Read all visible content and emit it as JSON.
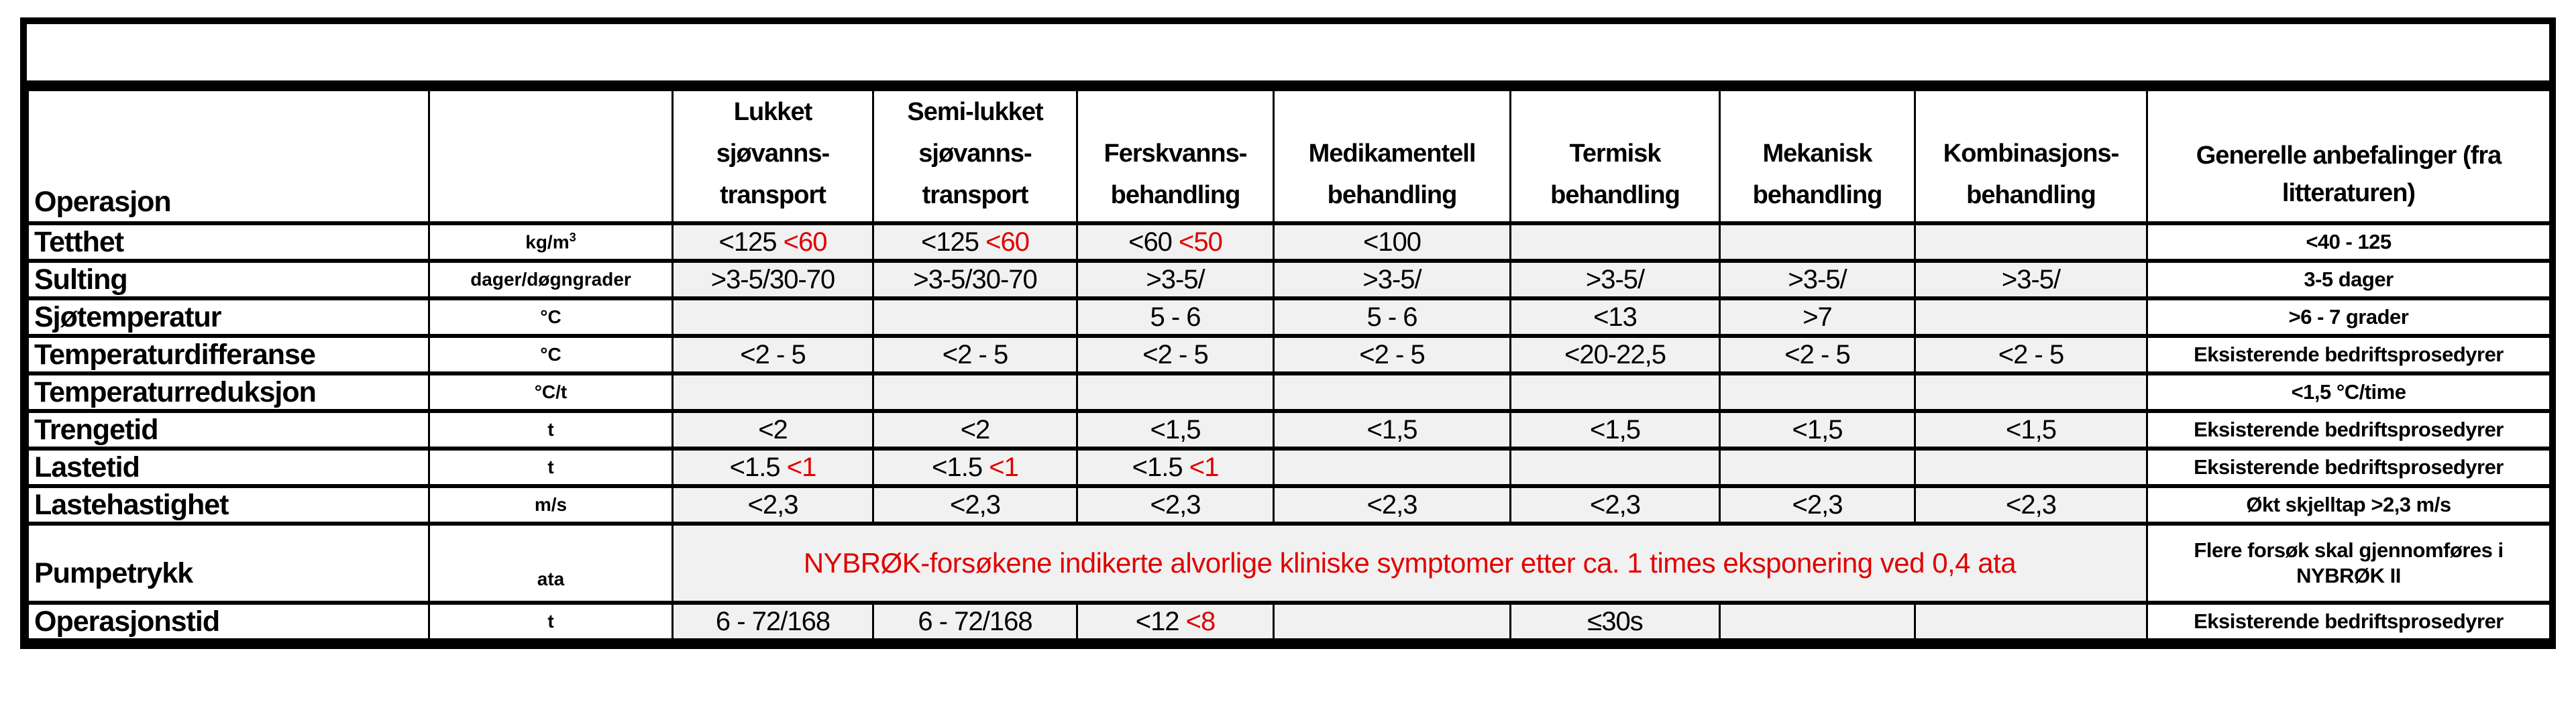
{
  "title_box": "",
  "colors": {
    "red": "#e00000",
    "cell_background": "#f1f1f1",
    "border": "#000000",
    "page_background": "#ffffff"
  },
  "header": {
    "operation_label": "Operasjon",
    "unit_label": "",
    "treatments": [
      "Lukket\nsjøvanns-\ntransport",
      "Semi-lukket\nsjøvanns-\ntransport",
      "Ferskvanns-\nbehandling",
      "Medikamentell\nbehandling",
      "Termisk\nbehandling",
      "Mekanisk\nbehandling",
      "Kombinasjons-\nbehandling"
    ],
    "general_label": "Generelle anbefalinger (fra litteraturen)"
  },
  "rows": [
    {
      "label": "Tetthet",
      "unit": "kg/m",
      "unit_sup": "3",
      "cells": [
        [
          {
            "text": "<125 "
          },
          {
            "text": "<60",
            "red": true
          }
        ],
        [
          {
            "text": "<125 "
          },
          {
            "text": "<60",
            "red": true
          }
        ],
        [
          {
            "text": "<60 "
          },
          {
            "text": "<50",
            "red": true
          }
        ],
        [
          {
            "text": "<100"
          }
        ],
        [],
        [],
        []
      ],
      "general": "<40 - 125"
    },
    {
      "label": "Sulting",
      "unit": "dager/døgngrader",
      "cells": [
        [
          {
            "text": ">3-5/30-70"
          }
        ],
        [
          {
            "text": ">3-5/30-70"
          }
        ],
        [
          {
            "text": ">3-5/"
          }
        ],
        [
          {
            "text": ">3-5/"
          }
        ],
        [
          {
            "text": ">3-5/"
          }
        ],
        [
          {
            "text": ">3-5/"
          }
        ],
        [
          {
            "text": ">3-5/"
          }
        ]
      ],
      "general": "3-5 dager"
    },
    {
      "label": "Sjøtemperatur",
      "unit": "°C",
      "cells": [
        [],
        [],
        [
          {
            "text": "5 - 6"
          }
        ],
        [
          {
            "text": "5 - 6"
          }
        ],
        [
          {
            "text": "<13"
          }
        ],
        [
          {
            "text": ">7"
          }
        ],
        []
      ],
      "general": ">6 - 7 grader"
    },
    {
      "label": "Temperaturdifferanse",
      "unit": "°C",
      "cells": [
        [
          {
            "text": "<2 - 5"
          }
        ],
        [
          {
            "text": "<2 - 5"
          }
        ],
        [
          {
            "text": "<2 - 5"
          }
        ],
        [
          {
            "text": "<2 - 5"
          }
        ],
        [
          {
            "text": "<20-22,5"
          }
        ],
        [
          {
            "text": "<2 - 5"
          }
        ],
        [
          {
            "text": "<2 - 5"
          }
        ]
      ],
      "general": "Eksisterende bedriftsprosedyrer"
    },
    {
      "label": "Temperaturreduksjon",
      "unit": "°C/t",
      "cells": [
        [],
        [],
        [],
        [],
        [],
        [],
        []
      ],
      "general": "<1,5 °C/time"
    },
    {
      "label": "Trengetid",
      "unit": "t",
      "cells": [
        [
          {
            "text": "<2"
          }
        ],
        [
          {
            "text": "<2"
          }
        ],
        [
          {
            "text": "<1,5"
          }
        ],
        [
          {
            "text": "<1,5"
          }
        ],
        [
          {
            "text": "<1,5"
          }
        ],
        [
          {
            "text": "<1,5"
          }
        ],
        [
          {
            "text": "<1,5"
          }
        ]
      ],
      "general": "Eksisterende bedriftsprosedyrer"
    },
    {
      "label": "Lastetid",
      "unit": "t",
      "cells": [
        [
          {
            "text": "<1.5 "
          },
          {
            "text": "<1",
            "red": true
          }
        ],
        [
          {
            "text": "<1.5 "
          },
          {
            "text": "<1",
            "red": true
          }
        ],
        [
          {
            "text": "<1.5 "
          },
          {
            "text": "<1",
            "red": true
          }
        ],
        [],
        [],
        [],
        []
      ],
      "general": "Eksisterende bedriftsprosedyrer"
    },
    {
      "label": "Lastehastighet",
      "unit": "m/s",
      "cells": [
        [
          {
            "text": "<2,3"
          }
        ],
        [
          {
            "text": "<2,3"
          }
        ],
        [
          {
            "text": "<2,3"
          }
        ],
        [
          {
            "text": "<2,3"
          }
        ],
        [
          {
            "text": "<2,3"
          }
        ],
        [
          {
            "text": "<2,3"
          }
        ],
        [
          {
            "text": "<2,3"
          }
        ]
      ],
      "general": "Økt skjelltap >2,3 m/s"
    },
    {
      "label": "Pumpetrykk",
      "unit": "ata",
      "tall": true,
      "merged": {
        "colspan": 7,
        "segments": [
          {
            "text": "NYBRØK-forsøkene indikerte alvorlige kliniske symptomer etter ca. 1 times eksponering ved 0,4 ata",
            "red": true
          }
        ]
      },
      "general": "Flere forsøk skal gjennomføres i\nNYBRØK II"
    },
    {
      "label": "Operasjonstid",
      "unit": "t",
      "cells": [
        [
          {
            "text": "6 - 72/168"
          }
        ],
        [
          {
            "text": "6 - 72/168"
          }
        ],
        [
          {
            "text": "<12 "
          },
          {
            "text": "<8",
            "red": true
          }
        ],
        [],
        [
          {
            "text": "≤30s"
          }
        ],
        [],
        []
      ],
      "general": "Eksisterende bedriftsprosedyrer"
    }
  ]
}
